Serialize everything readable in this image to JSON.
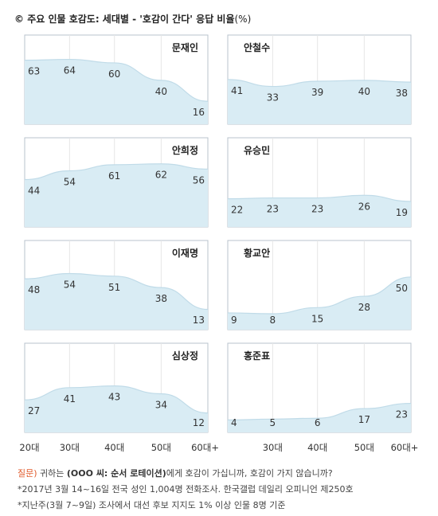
{
  "title": {
    "mark": "©",
    "main": "주요 인물 호감도: 세대별 - '호감이 간다' 응답 비율",
    "unit": "(%)"
  },
  "chart_data": [
    {
      "type": "area",
      "categories": [
        "20대",
        "30대",
        "40대",
        "50대",
        "60대+"
      ],
      "title": "문재인",
      "values": [
        63,
        64,
        60,
        40,
        16
      ]
    },
    {
      "type": "area",
      "categories": [
        "20대",
        "30대",
        "40대",
        "50대",
        "60대+"
      ],
      "title": "안철수",
      "values": [
        41,
        33,
        39,
        40,
        38
      ]
    },
    {
      "type": "area",
      "categories": [
        "20대",
        "30대",
        "40대",
        "50대",
        "60대+"
      ],
      "title": "안희정",
      "values": [
        44,
        54,
        61,
        62,
        56
      ]
    },
    {
      "type": "area",
      "categories": [
        "20대",
        "30대",
        "40대",
        "50대",
        "60대+"
      ],
      "title": "유승민",
      "values": [
        22,
        23,
        23,
        26,
        19
      ]
    },
    {
      "type": "area",
      "categories": [
        "20대",
        "30대",
        "40대",
        "50대",
        "60대+"
      ],
      "title": "이재명",
      "values": [
        48,
        54,
        51,
        38,
        13
      ]
    },
    {
      "type": "area",
      "categories": [
        "20대",
        "30대",
        "40대",
        "50대",
        "60대+"
      ],
      "title": "황교안",
      "values": [
        9,
        8,
        15,
        28,
        50
      ]
    },
    {
      "type": "area",
      "categories": [
        "20대",
        "30대",
        "40대",
        "50대",
        "60대+"
      ],
      "title": "심상정",
      "values": [
        27,
        41,
        43,
        34,
        12
      ]
    },
    {
      "type": "area",
      "categories": [
        "20대",
        "30대",
        "40대",
        "50대",
        "60대+"
      ],
      "title": "홍준표",
      "values": [
        4,
        5,
        6,
        17,
        23
      ]
    }
  ],
  "colors": {
    "fill": "#d9ecf4",
    "stroke": "#c0dbe8",
    "border": "#b8c3cc",
    "grid": "#e6e6e6"
  },
  "notes": {
    "q_label": "질문)",
    "q_pre": " 귀하는 ",
    "q_bold": "(OOO 씨: 순서 로테이션)",
    "q_post": "에게 호감이 가십니까, 호감이 가지 않습니까?",
    "line2": "*2017년 3월 14~16일 전국 성인 1,004명 전화조사. 한국갤럽 데일리 오피니언 제250호",
    "line3": "*지난주(3월 7~9일) 조사에서 대선 후보 지지도 1% 이상 인물 8명 기준"
  }
}
